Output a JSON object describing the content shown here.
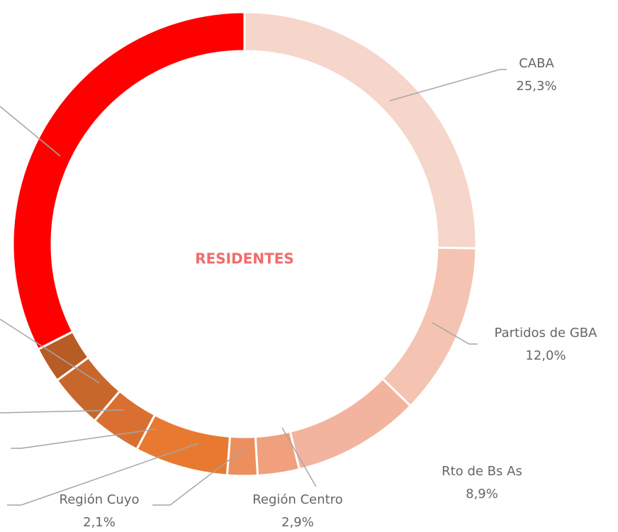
{
  "chart_data": {
    "type": "pie",
    "center_label": "RESIDENTES",
    "categories": [
      "CABA",
      "Partidos de GBA",
      "Rto de Bs As",
      "Región Centro",
      "Región Cuyo",
      null,
      null,
      null,
      null,
      null
    ],
    "values": [
      25.3,
      12.0,
      8.9,
      2.9,
      2.1,
      6.5,
      3.5,
      3.8,
      2.5,
      32.5
    ],
    "value_labels": [
      "25,3%",
      "12,0%",
      "8,9%",
      "2,9%",
      "2,1%",
      null,
      null,
      null,
      null,
      null
    ],
    "colors": [
      "#f6d5cb",
      "#f4c3b1",
      "#f2b49e",
      "#f0a07c",
      "#ec8f5e",
      "#e77a30",
      "#d97031",
      "#c8672c",
      "#b85c26",
      "#ff0000"
    ]
  }
}
